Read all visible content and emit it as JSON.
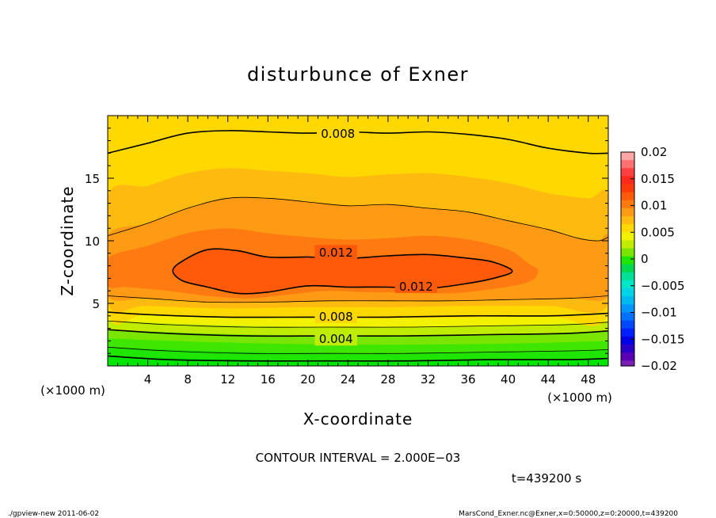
{
  "chart_data": {
    "type": "heatmap",
    "title": "disturbunce of Exner",
    "xlabel": "X-coordinate",
    "ylabel": "Z-coordinate",
    "x_unit": "(×1000 m)",
    "y_unit": "(×1000 m)",
    "xlim": [
      0,
      50
    ],
    "ylim": [
      0,
      20
    ],
    "x_ticks": [
      4,
      8,
      12,
      16,
      20,
      24,
      28,
      32,
      36,
      40,
      44,
      48
    ],
    "y_ticks": [
      5,
      10,
      15
    ],
    "colorbar": {
      "ticks": [
        0.02,
        0.015,
        0.01,
        0.005,
        0,
        -0.005,
        -0.01,
        -0.015,
        -0.02
      ],
      "tick_labels": [
        "0.02",
        "0.015",
        "0.01",
        "0.005",
        "0",
        "−0.005",
        "−0.01",
        "−0.015",
        "−0.02"
      ],
      "range": [
        -0.02,
        0.02
      ],
      "levels": [
        {
          "lo": 0.0185,
          "hi": 0.02,
          "color": "#ffa6a6"
        },
        {
          "lo": 0.017,
          "hi": 0.0185,
          "color": "#ff7070"
        },
        {
          "lo": 0.0155,
          "hi": 0.017,
          "color": "#ff4040"
        },
        {
          "lo": 0.014,
          "hi": 0.0155,
          "color": "#ff2a1a"
        },
        {
          "lo": 0.0125,
          "hi": 0.014,
          "color": "#ff3a0a"
        },
        {
          "lo": 0.011,
          "hi": 0.0125,
          "color": "#ff5a0a"
        },
        {
          "lo": 0.0095,
          "hi": 0.011,
          "color": "#ff7a10"
        },
        {
          "lo": 0.008,
          "hi": 0.0095,
          "color": "#ff9a14"
        },
        {
          "lo": 0.0065,
          "hi": 0.008,
          "color": "#ffba10"
        },
        {
          "lo": 0.005,
          "hi": 0.0065,
          "color": "#ffd800"
        },
        {
          "lo": 0.0035,
          "hi": 0.005,
          "color": "#f2f200"
        },
        {
          "lo": 0.002,
          "hi": 0.0035,
          "color": "#c0ec00"
        },
        {
          "lo": 0.0005,
          "hi": 0.002,
          "color": "#7ae600"
        },
        {
          "lo": -0.001,
          "hi": 0.0005,
          "color": "#1ee600"
        },
        {
          "lo": -0.0025,
          "hi": -0.001,
          "color": "#00d850"
        },
        {
          "lo": -0.004,
          "hi": -0.0025,
          "color": "#00e096"
        },
        {
          "lo": -0.0055,
          "hi": -0.004,
          "color": "#00e6c8"
        },
        {
          "lo": -0.007,
          "hi": -0.0055,
          "color": "#00d4e6"
        },
        {
          "lo": -0.0085,
          "hi": -0.007,
          "color": "#00b8f0"
        },
        {
          "lo": -0.01,
          "hi": -0.0085,
          "color": "#0096ff"
        },
        {
          "lo": -0.0115,
          "hi": -0.01,
          "color": "#0070ff"
        },
        {
          "lo": -0.013,
          "hi": -0.0115,
          "color": "#0048ff"
        },
        {
          "lo": -0.0145,
          "hi": -0.013,
          "color": "#0020ff"
        },
        {
          "lo": -0.016,
          "hi": -0.0145,
          "color": "#0000e6"
        },
        {
          "lo": -0.0175,
          "hi": -0.016,
          "color": "#2a00c8"
        },
        {
          "lo": -0.019,
          "hi": -0.0175,
          "color": "#5a00b4"
        },
        {
          "lo": -0.02,
          "hi": -0.019,
          "color": "#7a1eb4"
        }
      ]
    },
    "contour_interval_text": "CONTOUR INTERVAL = 2.000E−03",
    "time_text": "t=439200 s",
    "contour_labels": [
      {
        "text": "0.008",
        "x": 23,
        "z": 18.6
      },
      {
        "text": "0.012",
        "x": 22.8,
        "z": 9.1
      },
      {
        "text": "0.012",
        "x": 30.8,
        "z": 6.4
      },
      {
        "text": "0.008",
        "x": 22.8,
        "z": 4.0
      },
      {
        "text": "0.004",
        "x": 22.8,
        "z": 2.2
      }
    ],
    "bands": [
      {
        "level": "0.012",
        "color": "#ff5a0a",
        "shape": [
          [
            6.5,
            7.6
          ],
          [
            7.5,
            8.4
          ],
          [
            10,
            9.3
          ],
          [
            13,
            9.2
          ],
          [
            16,
            8.7
          ],
          [
            20,
            8.7
          ],
          [
            24,
            8.6
          ],
          [
            28,
            8.8
          ],
          [
            32,
            8.9
          ],
          [
            36,
            8.6
          ],
          [
            38.5,
            8.3
          ],
          [
            40.4,
            7.6
          ],
          [
            39,
            7.1
          ],
          [
            36,
            6.6
          ],
          [
            32,
            6.2
          ],
          [
            28,
            6.3
          ],
          [
            24,
            6.3
          ],
          [
            20,
            6.4
          ],
          [
            16,
            5.9
          ],
          [
            13,
            5.8
          ],
          [
            10,
            6.3
          ],
          [
            7.5,
            6.8
          ]
        ]
      },
      {
        "level": "0.011",
        "color": "#ff7a10",
        "shape": [
          [
            0,
            8.6
          ],
          [
            4,
            9.6
          ],
          [
            8,
            10.6
          ],
          [
            12,
            11
          ],
          [
            16,
            10.6
          ],
          [
            20,
            10.3
          ],
          [
            24,
            10.1
          ],
          [
            28,
            10.2
          ],
          [
            32,
            10.4
          ],
          [
            36,
            10.1
          ],
          [
            40,
            9.3
          ],
          [
            42,
            8.2
          ],
          [
            43,
            7.6
          ],
          [
            42,
            6.7
          ],
          [
            38,
            6.1
          ],
          [
            34,
            5.8
          ],
          [
            30,
            5.9
          ],
          [
            26,
            5.9
          ],
          [
            22,
            6.0
          ],
          [
            18,
            5.7
          ],
          [
            14,
            5.4
          ],
          [
            10,
            5.6
          ],
          [
            6,
            6.0
          ],
          [
            2,
            6.3
          ],
          [
            0,
            6.4
          ]
        ]
      },
      {
        "level": "0.010",
        "color": "#ff9a14",
        "shape": [
          [
            0,
            10.4
          ],
          [
            4,
            11.4
          ],
          [
            8,
            12.6
          ],
          [
            12,
            13.4
          ],
          [
            16,
            13.4
          ],
          [
            20,
            13.1
          ],
          [
            24,
            12.8
          ],
          [
            28,
            12.9
          ],
          [
            32,
            12.6
          ],
          [
            36,
            12.3
          ],
          [
            40,
            11.6
          ],
          [
            44,
            10.9
          ],
          [
            47,
            10.2
          ],
          [
            49,
            10
          ],
          [
            50,
            10.3
          ],
          [
            50,
            5.6
          ],
          [
            46,
            5.4
          ],
          [
            40,
            5.3
          ],
          [
            34,
            5.2
          ],
          [
            28,
            5.2
          ],
          [
            22,
            5.2
          ],
          [
            16,
            5.1
          ],
          [
            10,
            5.1
          ],
          [
            4,
            5.4
          ],
          [
            0,
            5.6
          ]
        ]
      },
      {
        "level": "0.009",
        "color": "#ffba10",
        "shape": [
          [
            0,
            13.6
          ],
          [
            4,
            14.4
          ],
          [
            8,
            15.4
          ],
          [
            12,
            15.8
          ],
          [
            16,
            15.6
          ],
          [
            20,
            15.4
          ],
          [
            24,
            15.1
          ],
          [
            28,
            15.3
          ],
          [
            32,
            15.4
          ],
          [
            36,
            15.1
          ],
          [
            40,
            14.6
          ],
          [
            44,
            13.8
          ],
          [
            48,
            13.4
          ],
          [
            50,
            13.5
          ],
          [
            50,
            4.9
          ],
          [
            44,
            4.8
          ],
          [
            36,
            4.8
          ],
          [
            28,
            4.7
          ],
          [
            20,
            4.7
          ],
          [
            12,
            4.6
          ],
          [
            4,
            4.8
          ],
          [
            0,
            5.0
          ]
        ]
      },
      {
        "level": "0.008",
        "color": "#ffd800",
        "shape": [
          [
            0,
            17
          ],
          [
            4,
            17.8
          ],
          [
            8,
            18.6
          ],
          [
            12,
            18.8
          ],
          [
            16,
            18.7
          ],
          [
            20,
            18.6
          ],
          [
            24,
            18.7
          ],
          [
            28,
            18.6
          ],
          [
            32,
            18.7
          ],
          [
            36,
            18.5
          ],
          [
            40,
            18.1
          ],
          [
            44,
            17.4
          ],
          [
            48,
            17
          ],
          [
            50,
            17
          ],
          [
            50,
            4.2
          ],
          [
            44,
            4.0
          ],
          [
            36,
            4.0
          ],
          [
            28,
            3.9
          ],
          [
            20,
            3.9
          ],
          [
            12,
            3.9
          ],
          [
            4,
            4.1
          ],
          [
            0,
            4.3
          ]
        ]
      }
    ],
    "bottom_bands": [
      {
        "z_left": 4.3,
        "z_mid": 3.8,
        "z_right": 4.2,
        "color": "#f2f200"
      },
      {
        "z_left": 3.6,
        "z_mid": 3.1,
        "z_right": 3.5,
        "color": "#c0ec00"
      },
      {
        "z_left": 2.9,
        "z_mid": 2.4,
        "z_right": 2.8,
        "color": "#7ae600"
      },
      {
        "z_left": 2.2,
        "z_mid": 1.7,
        "z_right": 2.0,
        "color": "#3ee600"
      },
      {
        "z_left": 1.5,
        "z_mid": 1.0,
        "z_right": 1.3,
        "color": "#1ee600"
      },
      {
        "z_left": 0.8,
        "z_mid": 0.4,
        "z_right": 0.6,
        "color": "#00e600"
      }
    ],
    "contour_lines": [
      {
        "level": "0.008",
        "width": 1.6,
        "points": [
          [
            0,
            17
          ],
          [
            4,
            17.8
          ],
          [
            8,
            18.6
          ],
          [
            12,
            18.8
          ],
          [
            16,
            18.7
          ],
          [
            20,
            18.6
          ],
          [
            24,
            18.7
          ],
          [
            28,
            18.6
          ],
          [
            32,
            18.7
          ],
          [
            36,
            18.5
          ],
          [
            40,
            18.1
          ],
          [
            44,
            17.4
          ],
          [
            48,
            17
          ],
          [
            50,
            17
          ]
        ]
      },
      {
        "level": "0.010",
        "width": 0.8,
        "points": [
          [
            0,
            10.4
          ],
          [
            4,
            11.4
          ],
          [
            8,
            12.6
          ],
          [
            12,
            13.4
          ],
          [
            16,
            13.4
          ],
          [
            20,
            13.1
          ],
          [
            24,
            12.8
          ],
          [
            28,
            12.9
          ],
          [
            32,
            12.6
          ],
          [
            36,
            12.3
          ],
          [
            40,
            11.6
          ],
          [
            44,
            10.9
          ],
          [
            47,
            10.2
          ],
          [
            49,
            10
          ],
          [
            50,
            10.3
          ]
        ]
      },
      {
        "level": "0.012",
        "width": 1.6,
        "closed": true,
        "points": [
          [
            6.5,
            7.6
          ],
          [
            7.5,
            8.4
          ],
          [
            10,
            9.3
          ],
          [
            13,
            9.2
          ],
          [
            16,
            8.7
          ],
          [
            20,
            8.7
          ],
          [
            24,
            8.6
          ],
          [
            28,
            8.8
          ],
          [
            32,
            8.9
          ],
          [
            36,
            8.6
          ],
          [
            38.5,
            8.3
          ],
          [
            40.4,
            7.6
          ],
          [
            39,
            7.1
          ],
          [
            36,
            6.6
          ],
          [
            32,
            6.2
          ],
          [
            28,
            6.3
          ],
          [
            24,
            6.3
          ],
          [
            20,
            6.4
          ],
          [
            16,
            5.9
          ],
          [
            13,
            5.8
          ],
          [
            10,
            6.3
          ],
          [
            7.5,
            6.8
          ]
        ]
      },
      {
        "level": "0.010",
        "width": 0.8,
        "points": [
          [
            0,
            5.6
          ],
          [
            4,
            5.4
          ],
          [
            10,
            5.1
          ],
          [
            16,
            5.1
          ],
          [
            22,
            5.2
          ],
          [
            28,
            5.2
          ],
          [
            34,
            5.2
          ],
          [
            40,
            5.3
          ],
          [
            46,
            5.4
          ],
          [
            50,
            5.6
          ]
        ]
      },
      {
        "level": "0.008",
        "width": 1.6,
        "points": [
          [
            0,
            4.3
          ],
          [
            4,
            4.1
          ],
          [
            12,
            3.9
          ],
          [
            20,
            3.9
          ],
          [
            28,
            3.9
          ],
          [
            36,
            4.0
          ],
          [
            44,
            4.0
          ],
          [
            50,
            4.2
          ]
        ]
      },
      {
        "level": "0.006",
        "width": 0.8,
        "points": [
          [
            0,
            3.6
          ],
          [
            6,
            3.3
          ],
          [
            14,
            3.1
          ],
          [
            22,
            3.1
          ],
          [
            30,
            3.1
          ],
          [
            38,
            3.2
          ],
          [
            46,
            3.3
          ],
          [
            50,
            3.5
          ]
        ]
      },
      {
        "level": "0.004",
        "width": 1.6,
        "points": [
          [
            0,
            2.9
          ],
          [
            6,
            2.6
          ],
          [
            14,
            2.4
          ],
          [
            22,
            2.4
          ],
          [
            30,
            2.4
          ],
          [
            38,
            2.5
          ],
          [
            46,
            2.6
          ],
          [
            50,
            2.8
          ]
        ]
      },
      {
        "level": "0.002",
        "width": 0.8,
        "points": [
          [
            0,
            1.5
          ],
          [
            6,
            1.2
          ],
          [
            14,
            1.0
          ],
          [
            22,
            1.0
          ],
          [
            30,
            1.0
          ],
          [
            38,
            1.1
          ],
          [
            46,
            1.2
          ],
          [
            50,
            1.3
          ]
        ]
      },
      {
        "level": "0.000",
        "width": 1.6,
        "points": [
          [
            0,
            0.8
          ],
          [
            6,
            0.5
          ],
          [
            14,
            0.4
          ],
          [
            22,
            0.4
          ],
          [
            30,
            0.4
          ],
          [
            38,
            0.5
          ],
          [
            46,
            0.5
          ],
          [
            50,
            0.6
          ]
        ]
      }
    ]
  },
  "footer": {
    "left": "./gpview-new   2011-06-02",
    "right": "MarsCond_Exner.nc@Exner,x=0:50000,z=0:20000,t=439200"
  }
}
